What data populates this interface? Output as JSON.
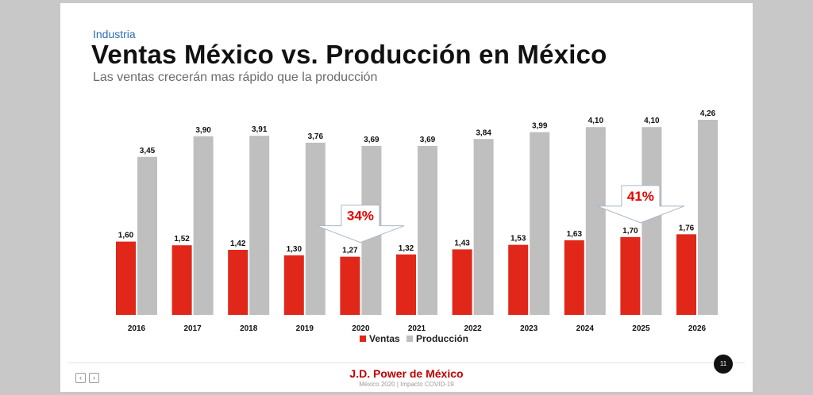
{
  "slide": {
    "section": "Industria",
    "title": "Ventas México vs. Producción en México",
    "subtitle": "Las ventas crecerán mas rápido que la producción"
  },
  "chart_data": {
    "type": "bar",
    "categories": [
      "2016",
      "2017",
      "2018",
      "2019",
      "2020",
      "2021",
      "2022",
      "2023",
      "2024",
      "2025",
      "2026"
    ],
    "series": [
      {
        "name": "Ventas",
        "color": "#e0271a",
        "values": [
          1.6,
          1.52,
          1.42,
          1.3,
          1.27,
          1.32,
          1.43,
          1.53,
          1.63,
          1.7,
          1.76
        ],
        "labels": [
          "1,60",
          "1,52",
          "1,42",
          "1,30",
          "1,27",
          "1,32",
          "1,43",
          "1,53",
          "1,63",
          "1,70",
          "1,76"
        ]
      },
      {
        "name": "Producción",
        "color": "#bfbfbf",
        "values": [
          3.45,
          3.9,
          3.91,
          3.76,
          3.69,
          3.69,
          3.84,
          3.99,
          4.1,
          4.1,
          4.26
        ],
        "labels": [
          "3,45",
          "3,90",
          "3,91",
          "3,76",
          "3,69",
          "3,69",
          "3,84",
          "3,99",
          "4,10",
          "4,10",
          "4,26"
        ]
      }
    ],
    "annotations": [
      {
        "text": "34%",
        "category": "2020",
        "shape": "down-arrow"
      },
      {
        "text": "41%",
        "category": "2025",
        "shape": "down-arrow"
      }
    ],
    "ylim": [
      0,
      4.26
    ],
    "grid": false,
    "legend": "bottom-center"
  },
  "footer": {
    "brand": "J.D. Power de México",
    "note": "México 2020 | Impacto COVID-19",
    "page": "11",
    "prev": "‹",
    "next": "›"
  }
}
